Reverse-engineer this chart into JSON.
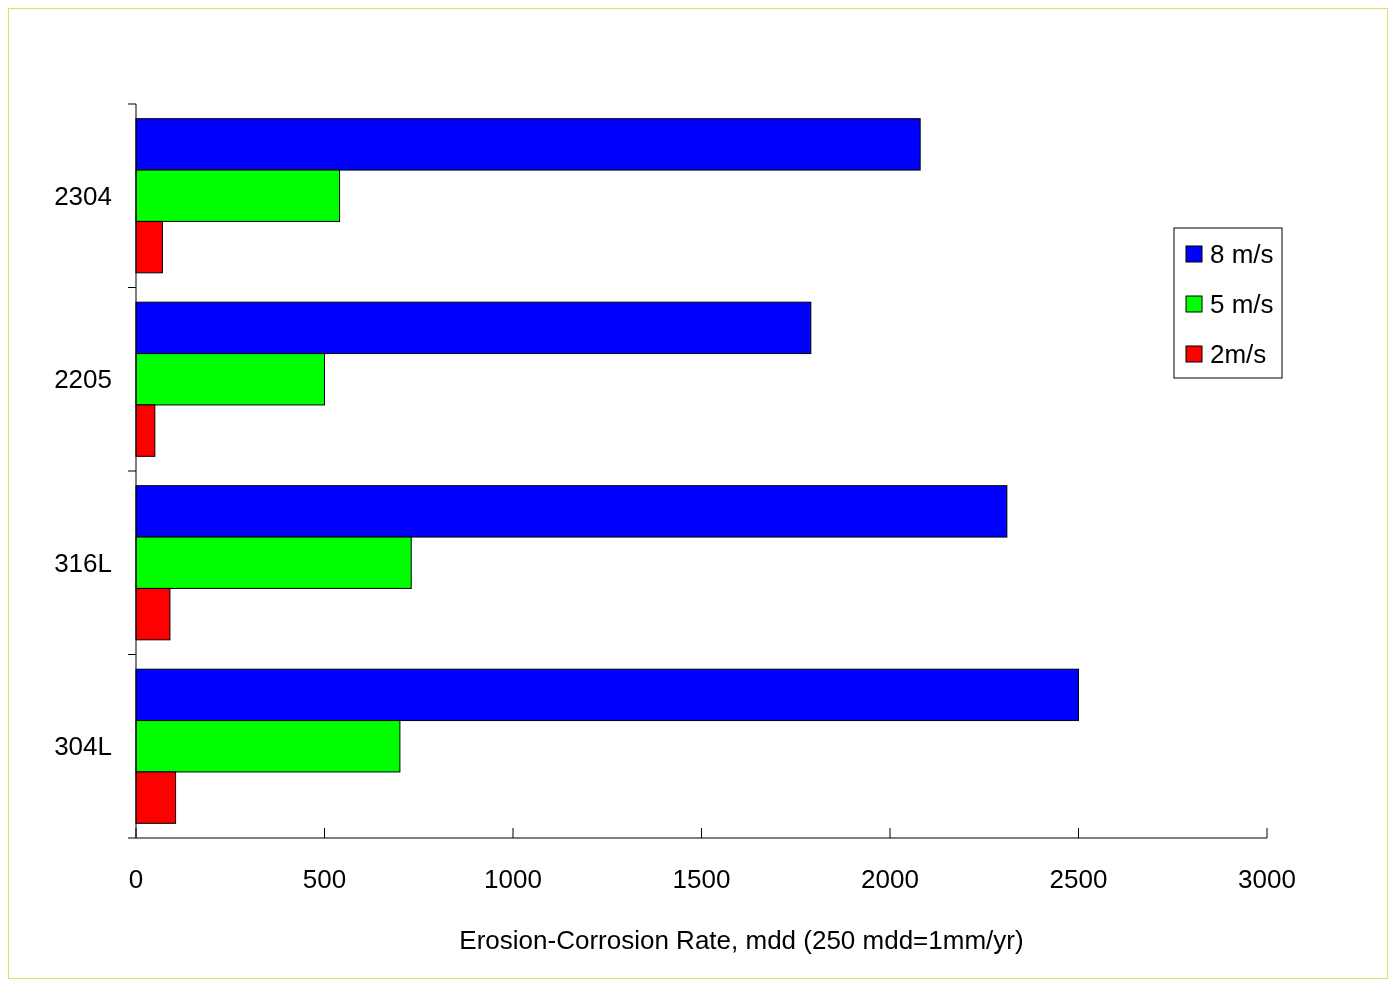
{
  "chart_data": {
    "type": "bar",
    "orientation": "horizontal",
    "xlabel": "Erosion-Corrosion Rate, mdd (250 mdd=1mm/yr)",
    "categories": [
      "2304",
      "2205",
      "316L",
      "304L"
    ],
    "series": [
      {
        "name": "8 m/s",
        "color": "#0000ff",
        "values": [
          2080,
          1790,
          2310,
          2500
        ]
      },
      {
        "name": "5 m/s",
        "color": "#00ff00",
        "values": [
          540,
          500,
          730,
          700
        ]
      },
      {
        "name": "2m/s",
        "color": "#ff0000",
        "values": [
          70,
          50,
          90,
          105
        ]
      }
    ],
    "xlim": [
      0,
      3000
    ],
    "xticks": [
      0,
      500,
      1000,
      1500,
      2000,
      2500,
      3000
    ],
    "legend": "right",
    "grid": false
  }
}
